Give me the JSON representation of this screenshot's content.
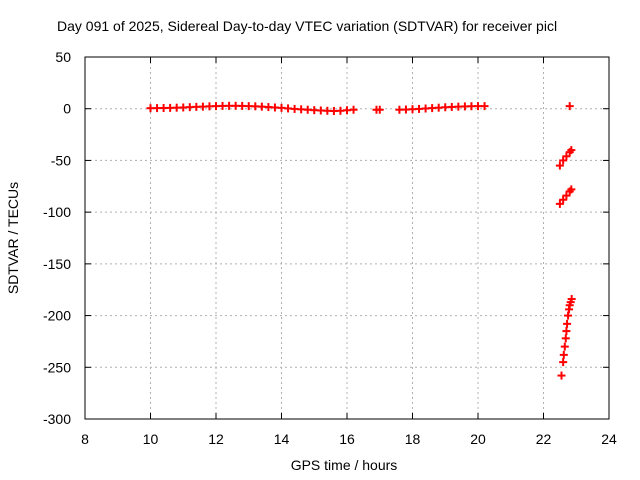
{
  "chart_data": {
    "type": "scatter",
    "title": "Day 091 of 2025, Sidereal Day-to-day VTEC variation (SDTVAR) for receiver picl",
    "xlabel": "GPS time / hours",
    "ylabel": "SDTVAR / TECUs",
    "xlim": [
      8,
      24
    ],
    "ylim": [
      -300,
      50
    ],
    "xticks": [
      "8",
      "10",
      "12",
      "14",
      "16",
      "18",
      "20",
      "22",
      "24"
    ],
    "yticks": [
      "50",
      "0",
      "-50",
      "-100",
      "-150",
      "-200",
      "-250",
      "-300"
    ],
    "grid": true,
    "marker": "plus",
    "color": "#ff0000",
    "series": [
      {
        "name": "SDTVAR",
        "points": [
          [
            10.0,
            0.5
          ],
          [
            10.2,
            0.6
          ],
          [
            10.4,
            0.7
          ],
          [
            10.6,
            0.8
          ],
          [
            10.8,
            1.0
          ],
          [
            11.0,
            1.2
          ],
          [
            11.2,
            1.5
          ],
          [
            11.4,
            1.8
          ],
          [
            11.6,
            2.0
          ],
          [
            11.8,
            2.3
          ],
          [
            12.0,
            2.5
          ],
          [
            12.2,
            2.7
          ],
          [
            12.4,
            2.8
          ],
          [
            12.6,
            2.8
          ],
          [
            12.8,
            2.7
          ],
          [
            13.0,
            2.5
          ],
          [
            13.2,
            2.3
          ],
          [
            13.4,
            2.0
          ],
          [
            13.6,
            1.6
          ],
          [
            13.8,
            1.2
          ],
          [
            14.0,
            0.8
          ],
          [
            14.2,
            0.3
          ],
          [
            14.4,
            -0.2
          ],
          [
            14.6,
            -0.6
          ],
          [
            14.8,
            -1.0
          ],
          [
            15.0,
            -1.4
          ],
          [
            15.2,
            -1.7
          ],
          [
            15.4,
            -2.0
          ],
          [
            15.6,
            -2.2
          ],
          [
            15.8,
            -2.0
          ],
          [
            16.0,
            -1.5
          ],
          [
            16.2,
            -1.0
          ],
          [
            16.9,
            -1.0
          ],
          [
            17.0,
            -1.0
          ],
          [
            17.6,
            -1.0
          ],
          [
            17.8,
            -0.8
          ],
          [
            18.0,
            -0.5
          ],
          [
            18.2,
            -0.2
          ],
          [
            18.4,
            0.2
          ],
          [
            18.6,
            0.6
          ],
          [
            18.8,
            1.0
          ],
          [
            19.0,
            1.4
          ],
          [
            19.2,
            1.7
          ],
          [
            19.4,
            2.0
          ],
          [
            19.6,
            2.2
          ],
          [
            19.8,
            2.4
          ],
          [
            20.0,
            2.5
          ],
          [
            20.2,
            2.5
          ],
          [
            22.8,
            2.5
          ],
          [
            22.5,
            -55
          ],
          [
            22.6,
            -50
          ],
          [
            22.7,
            -46
          ],
          [
            22.8,
            -42
          ],
          [
            22.85,
            -40
          ],
          [
            22.5,
            -92
          ],
          [
            22.6,
            -88
          ],
          [
            22.7,
            -84
          ],
          [
            22.8,
            -80
          ],
          [
            22.85,
            -78
          ],
          [
            22.55,
            -258
          ],
          [
            22.6,
            -245
          ],
          [
            22.62,
            -238
          ],
          [
            22.65,
            -230
          ],
          [
            22.68,
            -222
          ],
          [
            22.7,
            -215
          ],
          [
            22.72,
            -208
          ],
          [
            22.75,
            -200
          ],
          [
            22.78,
            -194
          ],
          [
            22.8,
            -190
          ],
          [
            22.83,
            -187
          ],
          [
            22.86,
            -184
          ]
        ]
      }
    ]
  }
}
